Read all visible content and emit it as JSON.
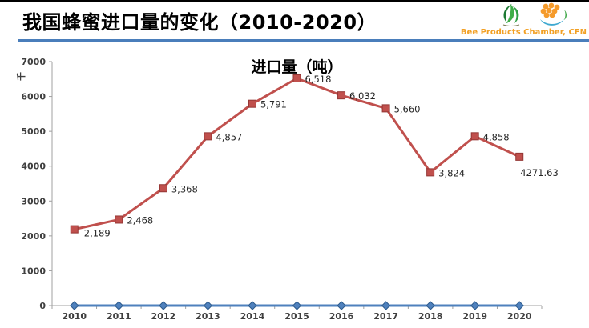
{
  "header": {
    "title": "我国蜂蜜进口量的变化（2010-2020）",
    "caption": "Bee Products Chamber, CFN"
  },
  "icons": {
    "left_logo": "green-leaf-swirl-logo",
    "right_logo": "honeycomb-bee-logo"
  },
  "colors": {
    "header_rule": "#4a7ebb",
    "caption_text": "#f2a024",
    "import_line": "#c0504d",
    "baseline_line": "#4f81bd",
    "axis": "#a0a0a0",
    "tick_text": "#3f3f3f",
    "data_label_text": "#262626"
  },
  "chart_data": {
    "type": "line",
    "title": "进口量（吨）",
    "unit_label": "千",
    "categories": [
      "2010",
      "2011",
      "2012",
      "2013",
      "2014",
      "2015",
      "2016",
      "2017",
      "2018",
      "2019",
      "2020"
    ],
    "series": [
      {
        "name": "进口量",
        "color": "#c0504d",
        "marker": "square",
        "values": [
          2189,
          2468,
          3368,
          4857,
          5791,
          6518,
          6032,
          5660,
          3824,
          4858,
          4271.63
        ],
        "labels": [
          "2,189",
          "2,468",
          "3,368",
          "4,857",
          "5,791",
          "6,518",
          "6,032",
          "5,660",
          "3,824",
          "4,858",
          "4271.63"
        ]
      },
      {
        "name": "",
        "color": "#4f81bd",
        "marker": "diamond",
        "values": [
          0,
          0,
          0,
          0,
          0,
          0,
          0,
          0,
          0,
          0,
          0
        ],
        "labels": []
      }
    ],
    "ylim": [
      0,
      7000
    ],
    "ytick_step": 1000,
    "grid": false,
    "legend": "none"
  }
}
